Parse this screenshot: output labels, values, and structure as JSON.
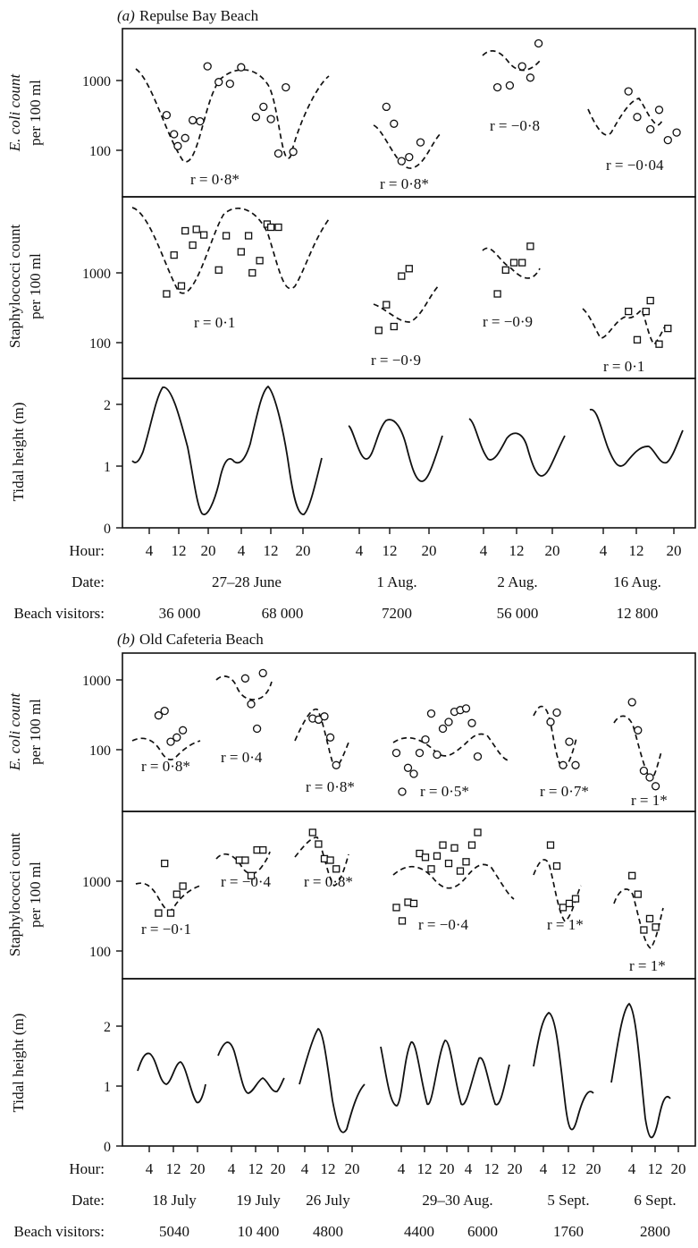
{
  "panels": [
    {
      "title_prefix": "(a)",
      "title": "Repulse Bay Beach",
      "sub": [
        {
          "ylabel_1": "E. coli count",
          "ylabel_2": "per 100 ml",
          "ticks": [
            "1000",
            "100"
          ]
        },
        {
          "ylabel_1": "Staphylococci count",
          "ylabel_2": "per 100 ml",
          "ticks": [
            "1000",
            "100"
          ]
        },
        {
          "ylabel_1": "Tidal height (m)",
          "ticks": [
            "2",
            "1",
            "0"
          ]
        }
      ],
      "row_labels": {
        "hour": "Hour:",
        "date": "Date:",
        "visitors": "Beach visitors:"
      },
      "hour_ticks": [
        "4",
        "12",
        "20",
        "4",
        "12",
        "20",
        "4",
        "12",
        "20",
        "4",
        "12",
        "20",
        "4",
        "12",
        "20"
      ],
      "dates": [
        "27–28 June",
        "1 Aug.",
        "2 Aug.",
        "16 Aug."
      ],
      "visitors": [
        "36 000",
        "68 000",
        "7200",
        "56 000",
        "12 800"
      ],
      "r_ecoli": [
        "r = 0·8*",
        "r = 0·8*",
        "r = −0·8",
        "r = −0·04"
      ],
      "r_staph": [
        "r = 0·1",
        "r = −0·9",
        "r = −0·9",
        "r = 0·1"
      ]
    },
    {
      "title_prefix": "(b)",
      "title": "Old Cafeteria Beach",
      "sub": [
        {
          "ylabel_1": "E. coli count",
          "ylabel_2": "per 100 ml",
          "ticks": [
            "1000",
            "100"
          ]
        },
        {
          "ylabel_1": "Staphylococci count",
          "ylabel_2": "per 100 ml",
          "ticks": [
            "1000",
            "100"
          ]
        },
        {
          "ylabel_1": "Tidal height (m)",
          "ticks": [
            "2",
            "1",
            "0"
          ]
        }
      ],
      "row_labels": {
        "hour": "Hour:",
        "date": "Date:",
        "visitors": "Beach visitors:"
      },
      "hour_ticks": [
        "4",
        "12",
        "20",
        "4",
        "12",
        "20",
        "4",
        "12",
        "20",
        "4",
        "12",
        "20",
        "4",
        "12",
        "20",
        "4",
        "12",
        "20",
        "4",
        "12",
        "20"
      ],
      "dates": [
        "18 July",
        "19 July",
        "26 July",
        "29–30 Aug.",
        "5 Sept.",
        "6 Sept."
      ],
      "visitors": [
        "5040",
        "10 400",
        "4800",
        "4400",
        "6000",
        "1760",
        "2800"
      ],
      "r_ecoli": [
        "r = 0·8*",
        "r = 0·4",
        "r = 0·8*",
        "r = 0·5*",
        "r = 0·7*",
        "r = 1*"
      ],
      "r_staph": [
        "r = −0·1",
        "r = −0·4",
        "r = 0·8*",
        "r = −0·4",
        "r = 1*",
        "r = 1*"
      ]
    }
  ],
  "chart_data": [
    {
      "type": "scatter",
      "title": "(a) Repulse Bay Beach",
      "ylabel": "E. coli count per 100 ml",
      "yscale": "log",
      "marker": "circle",
      "x_unit": "hour",
      "series": [
        {
          "date": "27–28 June",
          "r": "r = 0·8*",
          "x": [
            8,
            10,
            11,
            13,
            15,
            17,
            19,
            22,
            25,
            28,
            32,
            34,
            36,
            38,
            40,
            42
          ],
          "y": [
            320,
            170,
            115,
            150,
            270,
            260,
            1600,
            950,
            900,
            1550,
            300,
            420,
            280,
            90,
            800,
            95
          ]
        },
        {
          "date": "1 Aug.",
          "r": "r = 0·8*",
          "x": [
            9,
            11,
            13,
            15,
            18
          ],
          "y": [
            420,
            240,
            70,
            80,
            130
          ]
        },
        {
          "date": "2 Aug.",
          "r": "r = −0·8",
          "x": [
            6,
            9,
            12,
            14,
            16
          ],
          "y": [
            800,
            850,
            1600,
            1100,
            3400
          ]
        },
        {
          "date": "16 Aug.",
          "r": "r = −0·04",
          "x": [
            8,
            10,
            13,
            15,
            17,
            19
          ],
          "y": [
            700,
            300,
            200,
            380,
            140,
            180
          ]
        }
      ]
    },
    {
      "type": "scatter",
      "title": "(a) Repulse Bay Beach",
      "ylabel": "Staphylococci count per 100 ml",
      "yscale": "log",
      "marker": "square",
      "x_unit": "hour",
      "series": [
        {
          "date": "27–28 June",
          "x": [
            8,
            10,
            12,
            13,
            15,
            16,
            18,
            22,
            24,
            28,
            30,
            31,
            33,
            35,
            36,
            38
          ],
          "y": [
            500,
            1800,
            650,
            4000,
            2500,
            4200,
            3500,
            1100,
            3400,
            2000,
            3400,
            1000,
            1500,
            5000,
            4500,
            4500
          ]
        },
        {
          "date": "1 Aug.",
          "x": [
            7,
            9,
            11,
            13,
            15
          ],
          "y": [
            150,
            350,
            170,
            900,
            1150
          ]
        },
        {
          "date": "2 Aug.",
          "x": [
            6,
            8,
            10,
            12,
            14
          ],
          "y": [
            500,
            1100,
            1400,
            1400,
            2400
          ]
        },
        {
          "date": "16 Aug.",
          "x": [
            8,
            10,
            12,
            13,
            15,
            17
          ],
          "y": [
            280,
            110,
            280,
            400,
            95,
            160
          ]
        }
      ]
    },
    {
      "type": "line",
      "title": "(a) Repulse Bay Beach",
      "ylabel": "Tidal height (m)",
      "ylim": [
        0,
        2.4
      ],
      "series": [
        {
          "date": "27–28 June",
          "x": [
            0,
            4,
            8,
            12,
            16,
            20,
            24,
            28,
            32,
            36,
            40,
            44
          ],
          "y": [
            1.15,
            1.6,
            2.25,
            1.3,
            0.3,
            0.6,
            1.2,
            1.3,
            2.25,
            1.3,
            0.3,
            1.2
          ]
        },
        {
          "date": "1 Aug.",
          "x": [
            0,
            4,
            8,
            12,
            16,
            20
          ],
          "y": [
            1.65,
            1.2,
            1.7,
            1.4,
            0.9,
            1.5
          ]
        },
        {
          "date": "2 Aug.",
          "x": [
            0,
            4,
            8,
            12,
            16,
            20
          ],
          "y": [
            1.75,
            1.2,
            1.55,
            1.3,
            0.95,
            1.5
          ]
        },
        {
          "date": "16 Aug.",
          "x": [
            0,
            4,
            8,
            12,
            16,
            20
          ],
          "y": [
            1.9,
            1.1,
            1.3,
            1.35,
            1.2,
            1.6
          ]
        }
      ]
    },
    {
      "type": "scatter",
      "title": "(b) Old Cafeteria Beach",
      "ylabel": "E. coli count per 100 ml",
      "yscale": "log",
      "marker": "circle",
      "x_unit": "hour",
      "series": [
        {
          "date": "18 July",
          "r": "r = 0·8*",
          "x": [
            6,
            8,
            10,
            12,
            14
          ],
          "y": [
            310,
            360,
            130,
            150,
            190
          ]
        },
        {
          "date": "19 July",
          "r": "r = 0·4",
          "x": [
            8,
            10,
            12,
            14
          ],
          "y": [
            1050,
            450,
            200,
            1250
          ]
        },
        {
          "date": "26 July",
          "r": "r = 0·8*",
          "x": [
            6,
            8,
            10,
            12,
            14
          ],
          "y": [
            280,
            270,
            300,
            150,
            60
          ]
        },
        {
          "date": "29–30 Aug.",
          "r": "r = 0·5*",
          "x": [
            2,
            4,
            6,
            8,
            10,
            12,
            14,
            16,
            18,
            20,
            22,
            24,
            26,
            28,
            30
          ],
          "y": [
            90,
            25,
            55,
            45,
            90,
            140,
            330,
            85,
            200,
            250,
            350,
            370,
            390,
            240,
            80
          ]
        },
        {
          "date": "5 Sept.",
          "r": "r = 0·7*",
          "x": [
            6,
            8,
            10,
            12,
            14
          ],
          "y": [
            250,
            340,
            60,
            130,
            60
          ]
        },
        {
          "date": "6 Sept.",
          "r": "r = 1*",
          "x": [
            4,
            6,
            8,
            10,
            12
          ],
          "y": [
            480,
            190,
            50,
            40,
            30
          ]
        }
      ]
    },
    {
      "type": "scatter",
      "title": "(b) Old Cafeteria Beach",
      "ylabel": "Staphylococci count per 100 ml",
      "yscale": "log",
      "marker": "square",
      "x_unit": "hour",
      "series": [
        {
          "date": "18 July",
          "x": [
            6,
            8,
            10,
            12,
            14
          ],
          "y": [
            350,
            1800,
            350,
            650,
            850
          ]
        },
        {
          "date": "19 July",
          "x": [
            6,
            8,
            10,
            12,
            14
          ],
          "y": [
            2000,
            2000,
            1200,
            2800,
            2800
          ]
        },
        {
          "date": "26 July",
          "x": [
            6,
            8,
            10,
            12,
            14
          ],
          "y": [
            5000,
            3400,
            2100,
            2000,
            1500
          ]
        },
        {
          "date": "29–30 Aug.",
          "x": [
            2,
            4,
            6,
            8,
            10,
            12,
            14,
            16,
            18,
            20,
            22,
            24,
            26,
            28,
            30
          ],
          "y": [
            420,
            270,
            500,
            480,
            2500,
            2200,
            1500,
            2300,
            3300,
            1800,
            3000,
            1400,
            1900,
            3300,
            5000
          ]
        },
        {
          "date": "5 Sept.",
          "x": [
            6,
            8,
            10,
            12,
            14
          ],
          "y": [
            3300,
            1650,
            420,
            480,
            560
          ]
        },
        {
          "date": "6 Sept.",
          "x": [
            4,
            6,
            8,
            10,
            12
          ],
          "y": [
            1200,
            650,
            200,
            290,
            220
          ]
        }
      ]
    },
    {
      "type": "line",
      "title": "(b) Old Cafeteria Beach",
      "ylabel": "Tidal height (m)",
      "ylim": [
        0,
        2.4
      ],
      "series": [
        {
          "date": "18 July",
          "x": [
            0,
            3,
            7,
            11,
            15,
            20
          ],
          "y": [
            1.45,
            1.65,
            1.15,
            1.45,
            0.95,
            1.2
          ]
        },
        {
          "date": "19 July",
          "x": [
            0,
            3,
            7,
            11,
            15,
            20
          ],
          "y": [
            1.45,
            1.75,
            1.05,
            1.25,
            1.1,
            1.3
          ]
        },
        {
          "date": "26 July",
          "x": [
            0,
            4,
            8,
            13,
            17,
            20
          ],
          "y": [
            1.2,
            1.6,
            2.15,
            0.35,
            1.0,
            1.25
          ]
        },
        {
          "date": "29–30 Aug.",
          "x": [
            0,
            4,
            8,
            12,
            16,
            20,
            24,
            28,
            32,
            36,
            40,
            44
          ],
          "y": [
            1.7,
            0.95,
            1.75,
            0.95,
            1.8,
            0.95,
            1.75,
            0.95,
            1.55,
            1.0,
            1.5,
            1.9
          ]
        },
        {
          "date": "5 Sept.",
          "x": [
            0,
            4,
            8,
            13,
            17,
            20
          ],
          "y": [
            1.55,
            2.3,
            1.3,
            0.35,
            1.2,
            1.45
          ]
        },
        {
          "date": "6 Sept.",
          "x": [
            0,
            4,
            8,
            13,
            17,
            20
          ],
          "y": [
            1.3,
            2.45,
            1.3,
            0.2,
            1.3,
            1.5
          ]
        }
      ]
    }
  ]
}
